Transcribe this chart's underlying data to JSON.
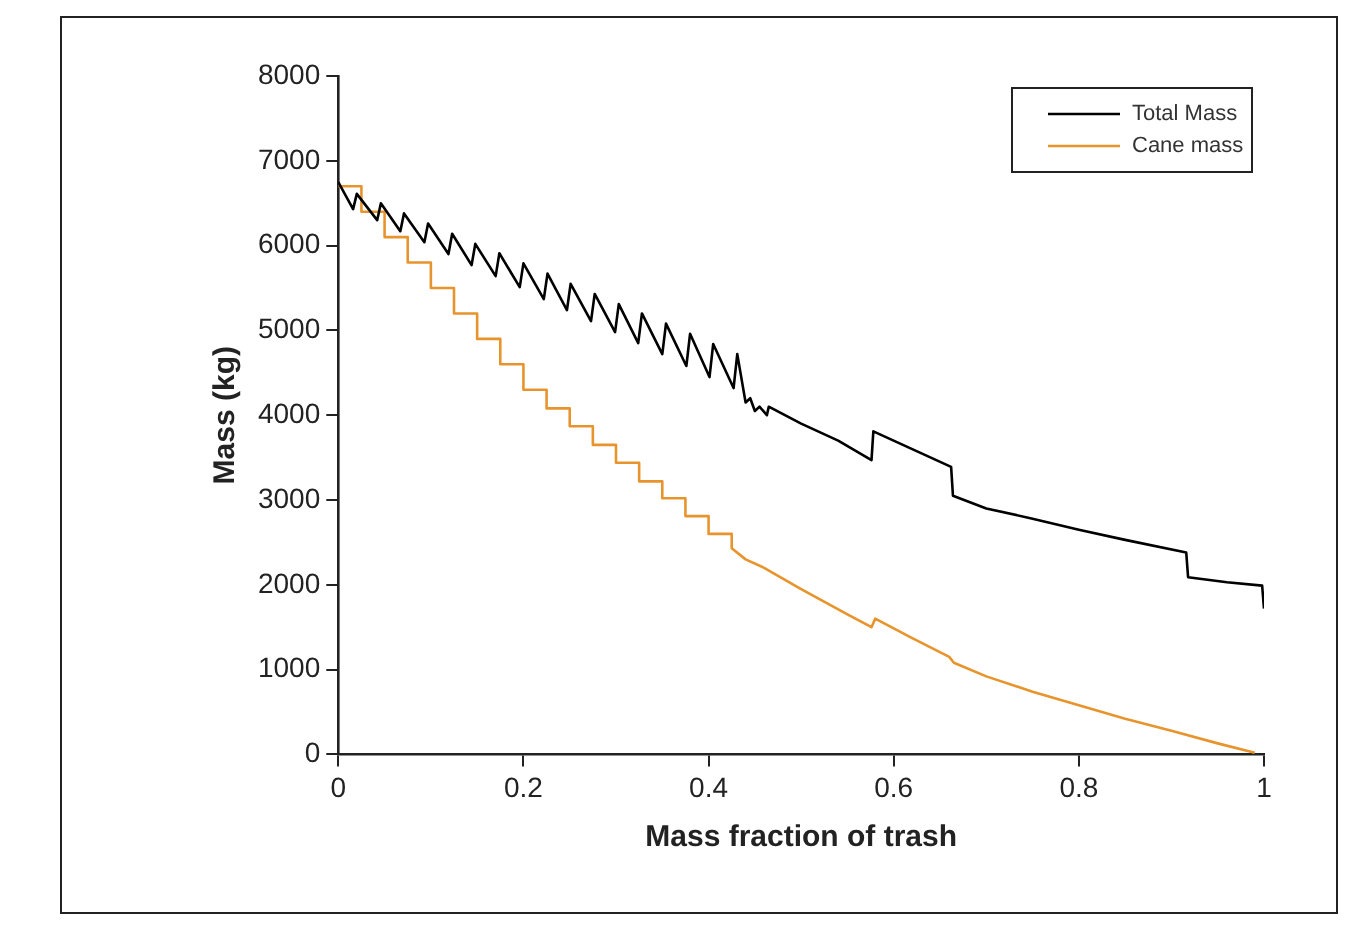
{
  "chart_data": {
    "type": "line",
    "xlabel": "Mass fraction of trash",
    "ylabel": "Mass (kg)",
    "xlim": [
      0,
      1
    ],
    "xticks": [
      0,
      0.2,
      0.4,
      0.6,
      0.8,
      1
    ],
    "ylim": [
      0,
      8000
    ],
    "yticks": [
      0,
      1000,
      2000,
      3000,
      4000,
      5000,
      6000,
      7000,
      8000
    ],
    "grid": false,
    "legend": "top right",
    "marker": "none",
    "line_style": "solid",
    "series": [
      {
        "name": "Total Mass",
        "color": "#000000",
        "x": [
          0,
          0.016,
          0.02,
          0.042,
          0.046,
          0.067,
          0.071,
          0.093,
          0.097,
          0.119,
          0.123,
          0.144,
          0.148,
          0.17,
          0.174,
          0.196,
          0.2,
          0.222,
          0.226,
          0.247,
          0.251,
          0.273,
          0.277,
          0.299,
          0.303,
          0.324,
          0.328,
          0.35,
          0.354,
          0.376,
          0.38,
          0.401,
          0.405,
          0.427,
          0.431,
          0.44,
          0.445,
          0.45,
          0.455,
          0.463,
          0.465,
          0.5,
          0.54,
          0.576,
          0.578,
          0.62,
          0.662,
          0.664,
          0.7,
          0.75,
          0.8,
          0.85,
          0.916,
          0.918,
          0.96,
          0.998,
          1
        ],
        "values": [
          6750,
          6430,
          6610,
          6300,
          6500,
          6170,
          6380,
          6040,
          6260,
          5900,
          6140,
          5770,
          6020,
          5640,
          5910,
          5510,
          5790,
          5370,
          5670,
          5240,
          5550,
          5110,
          5430,
          4980,
          5310,
          4850,
          5200,
          4720,
          5080,
          4580,
          4960,
          4450,
          4840,
          4320,
          4720,
          4150,
          4200,
          4050,
          4100,
          4000,
          4100,
          3900,
          3700,
          3470,
          3810,
          3600,
          3390,
          3050,
          2900,
          2780,
          2650,
          2530,
          2380,
          2090,
          2030,
          1990,
          1720
        ]
      },
      {
        "name": "Cane mass",
        "color": "#e8942c",
        "x": [
          0,
          0.025,
          0.025,
          0.05,
          0.05,
          0.075,
          0.075,
          0.1,
          0.1,
          0.125,
          0.125,
          0.15,
          0.15,
          0.175,
          0.175,
          0.2,
          0.2,
          0.225,
          0.225,
          0.25,
          0.25,
          0.275,
          0.275,
          0.3,
          0.3,
          0.325,
          0.325,
          0.35,
          0.35,
          0.375,
          0.375,
          0.4,
          0.4,
          0.425,
          0.425,
          0.44,
          0.46,
          0.5,
          0.55,
          0.576,
          0.58,
          0.62,
          0.66,
          0.665,
          0.7,
          0.75,
          0.8,
          0.85,
          0.9,
          0.95,
          0.99
        ],
        "values": [
          6700,
          6700,
          6400,
          6400,
          6100,
          6100,
          5800,
          5800,
          5500,
          5500,
          5200,
          5200,
          4900,
          4900,
          4600,
          4600,
          4300,
          4300,
          4080,
          4080,
          3870,
          3870,
          3650,
          3650,
          3440,
          3440,
          3220,
          3220,
          3020,
          3020,
          2810,
          2810,
          2600,
          2600,
          2430,
          2300,
          2200,
          1950,
          1650,
          1500,
          1600,
          1370,
          1150,
          1080,
          920,
          740,
          580,
          420,
          280,
          130,
          20
        ]
      }
    ]
  }
}
